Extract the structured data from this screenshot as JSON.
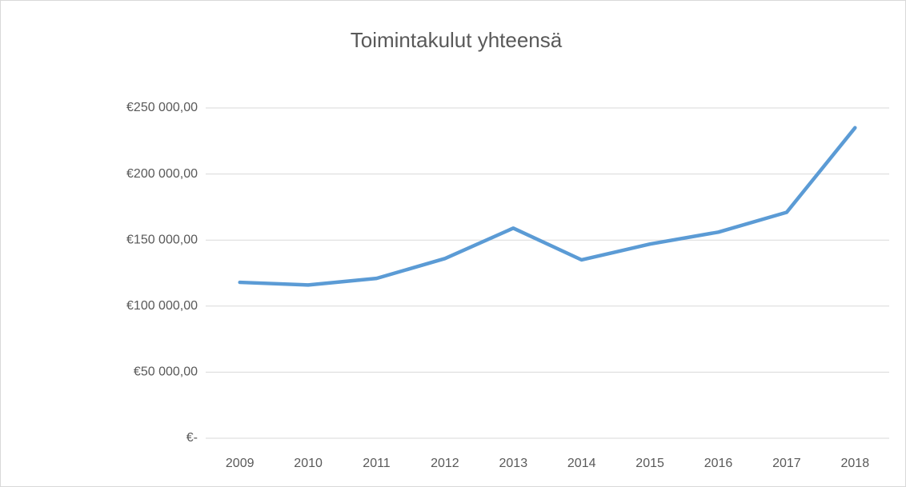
{
  "chart_data": {
    "type": "line",
    "title": "Toimintakulut yhteensä",
    "categories": [
      "2009",
      "2010",
      "2011",
      "2012",
      "2013",
      "2014",
      "2015",
      "2016",
      "2017",
      "2018"
    ],
    "series": [
      {
        "color": "#5b9bd5",
        "values": [
          118000,
          116000,
          121000,
          136000,
          159000,
          135000,
          147000,
          156000,
          171000,
          235000
        ]
      }
    ],
    "ylim": [
      0,
      250000
    ],
    "yticks": [
      {
        "value": 0,
        "label": "€-"
      },
      {
        "value": 50000,
        "label": "€50 000,00"
      },
      {
        "value": 100000,
        "label": "€100 000,00"
      },
      {
        "value": 150000,
        "label": "€150 000,00"
      },
      {
        "value": 200000,
        "label": "€200 000,00"
      },
      {
        "value": 250000,
        "label": "€250 000,00"
      }
    ],
    "grid": true
  }
}
